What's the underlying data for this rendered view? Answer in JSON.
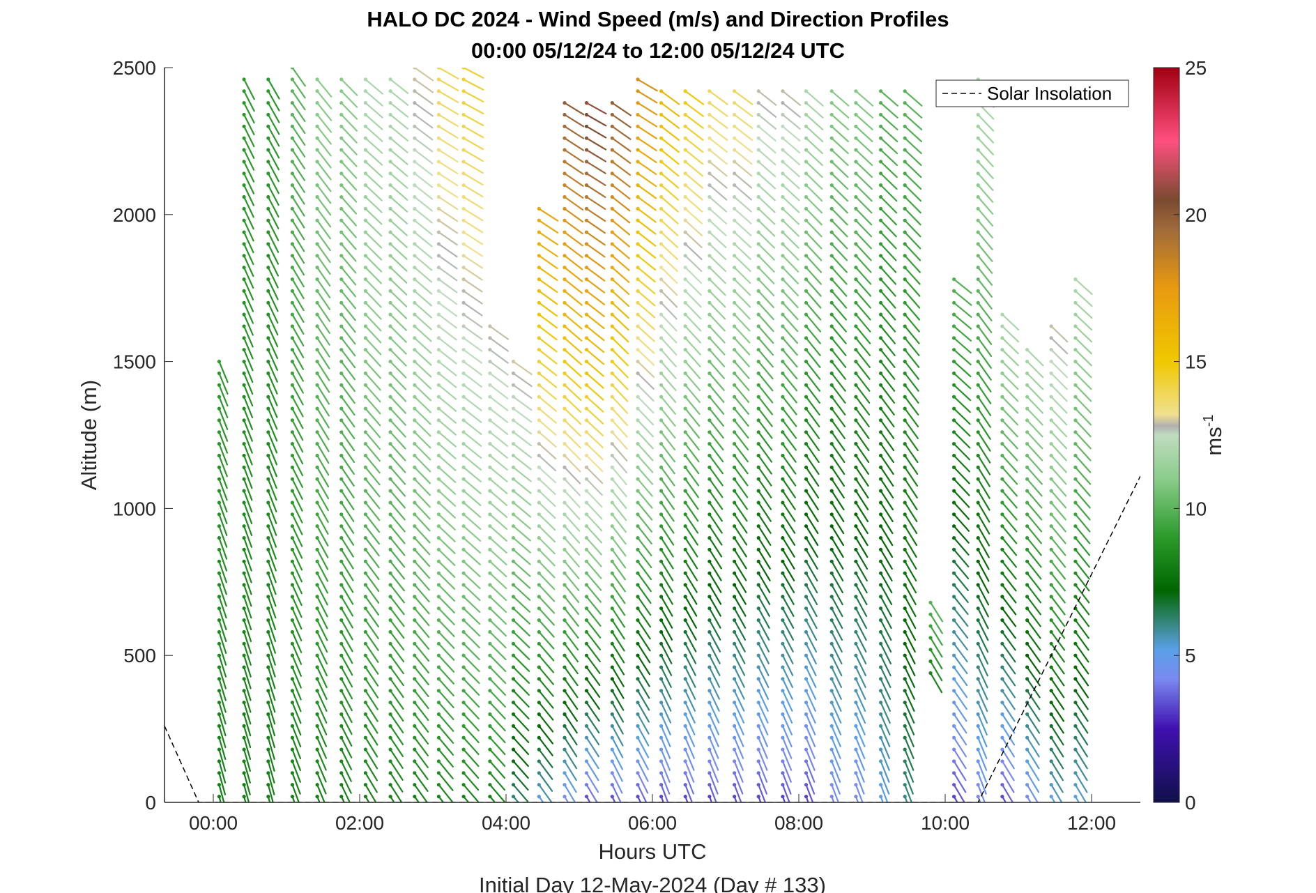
{
  "chart_data": {
    "type": "wind-barb-profile",
    "title_line1": "HALO DC 2024 - Wind Speed (m/s) and Direction Profiles",
    "title_line2": "00:00 05/12/24 to 12:00 05/12/24  UTC",
    "xlabel": "Hours UTC",
    "ylabel": "Altitude (m)",
    "caption": "Initial Day 12-May-2024 (Day # 133)",
    "xlim": [
      -0.6667,
      12.6667
    ],
    "ylim": [
      0,
      2500
    ],
    "x_ticks": [
      0,
      2,
      4,
      6,
      8,
      10,
      12
    ],
    "x_tick_labels": [
      "00:00",
      "02:00",
      "04:00",
      "06:00",
      "08:00",
      "10:00",
      "12:00"
    ],
    "y_ticks": [
      0,
      500,
      1000,
      1500,
      2000,
      2500
    ],
    "y_tick_labels": [
      "0",
      "500",
      "1000",
      "1500",
      "2000",
      "2500"
    ],
    "colorbar": {
      "label": "ms",
      "label_superscript": "-1",
      "range": [
        0,
        25
      ],
      "ticks": [
        0,
        5,
        10,
        15,
        20,
        25
      ],
      "tick_labels": [
        "0",
        "5",
        "10",
        "15",
        "20",
        "25"
      ],
      "stops": [
        {
          "v": 0,
          "c": "#10104a"
        },
        {
          "v": 2.5,
          "c": "#4010b0"
        },
        {
          "v": 4.2,
          "c": "#7a8af0"
        },
        {
          "v": 5.2,
          "c": "#5aa0e8"
        },
        {
          "v": 6.0,
          "c": "#3a8a8a"
        },
        {
          "v": 7.2,
          "c": "#006600"
        },
        {
          "v": 9.0,
          "c": "#2a9a2a"
        },
        {
          "v": 11.0,
          "c": "#8acc8a"
        },
        {
          "v": 12.5,
          "c": "#c0dcc0"
        },
        {
          "v": 12.8,
          "c": "#b0b0b0"
        },
        {
          "v": 13.2,
          "c": "#f0e090"
        },
        {
          "v": 15.0,
          "c": "#f0c800"
        },
        {
          "v": 17.5,
          "c": "#e89a10"
        },
        {
          "v": 19.5,
          "c": "#a06a3a"
        },
        {
          "v": 20.5,
          "c": "#7a4a30"
        },
        {
          "v": 22.5,
          "c": "#ff5080"
        },
        {
          "v": 25.0,
          "c": "#a00010"
        }
      ]
    },
    "legend": {
      "label": "Solar Insolation",
      "location": "top-right"
    },
    "solar_insolation": [
      [
        -0.6667,
        260
      ],
      [
        -0.2,
        0
      ],
      [
        10.45,
        0
      ],
      [
        12.6667,
        1110
      ]
    ],
    "profiles": [
      {
        "t": 0.08,
        "ranges": [
          [
            0,
            1500,
            8,
            165,
            0.5,
            9
          ]
        ]
      },
      {
        "t": 0.42,
        "ranges": [
          [
            0,
            2480,
            8,
            165,
            0.5,
            9
          ]
        ]
      },
      {
        "t": 0.75,
        "ranges": [
          [
            0,
            2480,
            8,
            165,
            0.6,
            9
          ]
        ]
      },
      {
        "t": 1.08,
        "ranges": [
          [
            0,
            2500,
            8,
            160,
            0.6,
            10
          ]
        ]
      },
      {
        "t": 1.42,
        "ranges": [
          [
            0,
            2480,
            8,
            158,
            0.7,
            11
          ]
        ]
      },
      {
        "t": 1.75,
        "ranges": [
          [
            0,
            2480,
            8,
            155,
            0.8,
            11
          ]
        ]
      },
      {
        "t": 2.08,
        "ranges": [
          [
            0,
            2480,
            8,
            150,
            0.8,
            12
          ]
        ]
      },
      {
        "t": 2.42,
        "ranges": [
          [
            0,
            2480,
            8,
            148,
            0.8,
            12
          ]
        ]
      },
      {
        "t": 2.75,
        "ranges": [
          [
            0,
            2500,
            8,
            145,
            0.8,
            13
          ]
        ]
      },
      {
        "t": 3.08,
        "ranges": [
          [
            0,
            2500,
            8,
            142,
            0.9,
            14
          ]
        ]
      },
      {
        "t": 3.42,
        "ranges": [
          [
            0,
            2500,
            8,
            140,
            0.9,
            14.5
          ]
        ]
      },
      {
        "t": 3.78,
        "ranges": [
          [
            0,
            1650,
            8,
            140,
            0.9,
            13
          ]
        ]
      },
      {
        "t": 4.1,
        "ranges": [
          [
            0,
            1500,
            6,
            140,
            1.0,
            13
          ]
        ]
      },
      {
        "t": 4.45,
        "ranges": [
          [
            0,
            2050,
            5,
            145,
            1.1,
            17
          ]
        ]
      },
      {
        "t": 4.8,
        "ranges": [
          [
            0,
            2400,
            4,
            150,
            1.2,
            20
          ]
        ]
      },
      {
        "t": 5.1,
        "ranges": [
          [
            0,
            2400,
            3,
            150,
            1.3,
            21
          ]
        ]
      },
      {
        "t": 5.45,
        "ranges": [
          [
            0,
            2400,
            3,
            155,
            1.3,
            20
          ]
        ]
      },
      {
        "t": 5.8,
        "ranges": [
          [
            0,
            2480,
            3,
            155,
            1.4,
            18
          ]
        ]
      },
      {
        "t": 6.12,
        "ranges": [
          [
            0,
            2450,
            3,
            160,
            1.4,
            16
          ]
        ]
      },
      {
        "t": 6.45,
        "ranges": [
          [
            0,
            2450,
            3,
            160,
            1.4,
            15
          ]
        ]
      },
      {
        "t": 6.78,
        "ranges": [
          [
            0,
            2450,
            3,
            160,
            1.4,
            14
          ]
        ]
      },
      {
        "t": 7.12,
        "ranges": [
          [
            0,
            2450,
            3,
            160,
            1.4,
            14
          ]
        ]
      },
      {
        "t": 7.45,
        "ranges": [
          [
            0,
            2450,
            3,
            160,
            1.3,
            13
          ]
        ]
      },
      {
        "t": 7.78,
        "ranges": [
          [
            0,
            2450,
            3,
            160,
            1.3,
            13
          ]
        ]
      },
      {
        "t": 8.1,
        "ranges": [
          [
            0,
            2450,
            3,
            160,
            1.2,
            12
          ]
        ]
      },
      {
        "t": 8.45,
        "ranges": [
          [
            0,
            2450,
            4,
            160,
            1.2,
            11
          ]
        ]
      },
      {
        "t": 8.78,
        "ranges": [
          [
            0,
            2450,
            4,
            160,
            1.2,
            11
          ]
        ]
      },
      {
        "t": 9.12,
        "ranges": [
          [
            0,
            2450,
            5,
            160,
            1.2,
            10
          ]
        ]
      },
      {
        "t": 9.45,
        "ranges": [
          [
            0,
            2450,
            6,
            160,
            1.2,
            10
          ]
        ]
      },
      {
        "t": 9.8,
        "ranges": [
          [
            420,
            700,
            8,
            150,
            0.8,
            10
          ]
        ]
      },
      {
        "t": 10.12,
        "ranges": [
          [
            0,
            1800,
            3,
            150,
            1.2,
            10
          ]
        ]
      },
      {
        "t": 10.45,
        "ranges": [
          [
            0,
            2480,
            4,
            160,
            1.0,
            12
          ]
        ]
      },
      {
        "t": 10.78,
        "ranges": [
          [
            0,
            1680,
            3,
            150,
            1.0,
            12
          ]
        ]
      },
      {
        "t": 11.12,
        "ranges": [
          [
            0,
            1560,
            4,
            150,
            1.0,
            12
          ]
        ]
      },
      {
        "t": 11.45,
        "ranges": [
          [
            0,
            1640,
            5,
            150,
            1.0,
            13
          ]
        ]
      },
      {
        "t": 11.78,
        "ranges": [
          [
            0,
            1800,
            5,
            150,
            1.0,
            12
          ]
        ]
      }
    ]
  }
}
